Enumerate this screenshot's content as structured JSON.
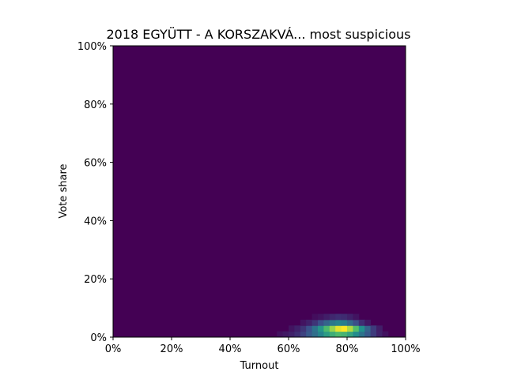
{
  "chart_data": {
    "type": "heatmap",
    "title": "2018 EGYÜTT - A KORSZAKVÁ... most suspicious",
    "xlabel": "Turnout",
    "ylabel": "Vote share",
    "xlim": [
      0,
      100
    ],
    "ylim": [
      0,
      100
    ],
    "x_ticks": [
      "0%",
      "20%",
      "40%",
      "60%",
      "80%",
      "100%"
    ],
    "y_ticks": [
      "0%",
      "20%",
      "40%",
      "60%",
      "80%",
      "100%"
    ],
    "grid": false,
    "colormap": "viridis",
    "background_color": "#440154",
    "density_cells": [
      {
        "x": 57,
        "y": 1,
        "v": 0.05
      },
      {
        "x": 59,
        "y": 1,
        "v": 0.07
      },
      {
        "x": 61,
        "y": 1,
        "v": 0.1
      },
      {
        "x": 63,
        "y": 1,
        "v": 0.14
      },
      {
        "x": 65,
        "y": 1,
        "v": 0.2
      },
      {
        "x": 67,
        "y": 1,
        "v": 0.28
      },
      {
        "x": 69,
        "y": 1,
        "v": 0.36
      },
      {
        "x": 71,
        "y": 1,
        "v": 0.45
      },
      {
        "x": 73,
        "y": 1,
        "v": 0.55
      },
      {
        "x": 75,
        "y": 1,
        "v": 0.62
      },
      {
        "x": 77,
        "y": 1,
        "v": 0.68
      },
      {
        "x": 79,
        "y": 1,
        "v": 0.65
      },
      {
        "x": 81,
        "y": 1,
        "v": 0.58
      },
      {
        "x": 83,
        "y": 1,
        "v": 0.48
      },
      {
        "x": 85,
        "y": 1,
        "v": 0.38
      },
      {
        "x": 87,
        "y": 1,
        "v": 0.28
      },
      {
        "x": 89,
        "y": 1,
        "v": 0.18
      },
      {
        "x": 91,
        "y": 1,
        "v": 0.1
      },
      {
        "x": 93,
        "y": 1,
        "v": 0.05
      },
      {
        "x": 61,
        "y": 3,
        "v": 0.06
      },
      {
        "x": 63,
        "y": 3,
        "v": 0.1
      },
      {
        "x": 65,
        "y": 3,
        "v": 0.16
      },
      {
        "x": 67,
        "y": 3,
        "v": 0.25
      },
      {
        "x": 69,
        "y": 3,
        "v": 0.38
      },
      {
        "x": 71,
        "y": 3,
        "v": 0.52
      },
      {
        "x": 73,
        "y": 3,
        "v": 0.68
      },
      {
        "x": 75,
        "y": 3,
        "v": 0.84
      },
      {
        "x": 77,
        "y": 3,
        "v": 0.96
      },
      {
        "x": 79,
        "y": 3,
        "v": 1.0
      },
      {
        "x": 81,
        "y": 3,
        "v": 0.88
      },
      {
        "x": 83,
        "y": 3,
        "v": 0.7
      },
      {
        "x": 85,
        "y": 3,
        "v": 0.5
      },
      {
        "x": 87,
        "y": 3,
        "v": 0.32
      },
      {
        "x": 89,
        "y": 3,
        "v": 0.18
      },
      {
        "x": 91,
        "y": 3,
        "v": 0.09
      },
      {
        "x": 65,
        "y": 5,
        "v": 0.06
      },
      {
        "x": 67,
        "y": 5,
        "v": 0.1
      },
      {
        "x": 69,
        "y": 5,
        "v": 0.16
      },
      {
        "x": 71,
        "y": 5,
        "v": 0.24
      },
      {
        "x": 73,
        "y": 5,
        "v": 0.32
      },
      {
        "x": 75,
        "y": 5,
        "v": 0.4
      },
      {
        "x": 77,
        "y": 5,
        "v": 0.44
      },
      {
        "x": 79,
        "y": 5,
        "v": 0.42
      },
      {
        "x": 81,
        "y": 5,
        "v": 0.34
      },
      {
        "x": 83,
        "y": 5,
        "v": 0.24
      },
      {
        "x": 85,
        "y": 5,
        "v": 0.14
      },
      {
        "x": 87,
        "y": 5,
        "v": 0.07
      },
      {
        "x": 69,
        "y": 7,
        "v": 0.04
      },
      {
        "x": 71,
        "y": 7,
        "v": 0.06
      },
      {
        "x": 73,
        "y": 7,
        "v": 0.09
      },
      {
        "x": 75,
        "y": 7,
        "v": 0.12
      },
      {
        "x": 77,
        "y": 7,
        "v": 0.14
      },
      {
        "x": 79,
        "y": 7,
        "v": 0.13
      },
      {
        "x": 81,
        "y": 7,
        "v": 0.1
      },
      {
        "x": 83,
        "y": 7,
        "v": 0.06
      }
    ]
  }
}
